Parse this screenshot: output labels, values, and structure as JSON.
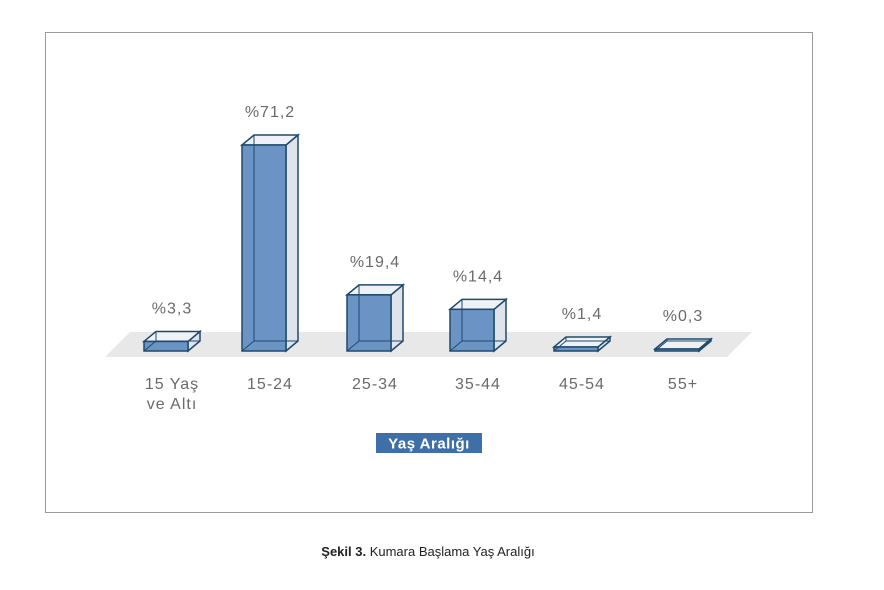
{
  "chart_data": {
    "type": "bar",
    "style": "3d",
    "categories": [
      [
        "15 Yaş",
        "ve Altı"
      ],
      [
        "15-24"
      ],
      [
        "25-34"
      ],
      [
        "35-44"
      ],
      [
        "45-54"
      ],
      [
        "55+"
      ]
    ],
    "values": [
      3.3,
      71.2,
      19.4,
      14.4,
      1.4,
      0.3
    ],
    "value_labels": [
      "%3,3",
      "%71,2",
      "%19,4",
      "%14,4",
      "%1,4",
      "%0,3"
    ],
    "xlabel": "Yaş Aralığı",
    "ylabel": "",
    "ylim": [
      0,
      75
    ],
    "grid": false,
    "colors": {
      "bar_front": "#6b93c4",
      "bar_edge": "#1f4a6b",
      "bar_side": "#dfe3ea",
      "floor": "#e8e8e8",
      "xlabel_bg": "#3f6fa8"
    }
  },
  "caption": {
    "bold": "Şekil 3.",
    "text": " Kumara Başlama Yaş Aralığı"
  }
}
